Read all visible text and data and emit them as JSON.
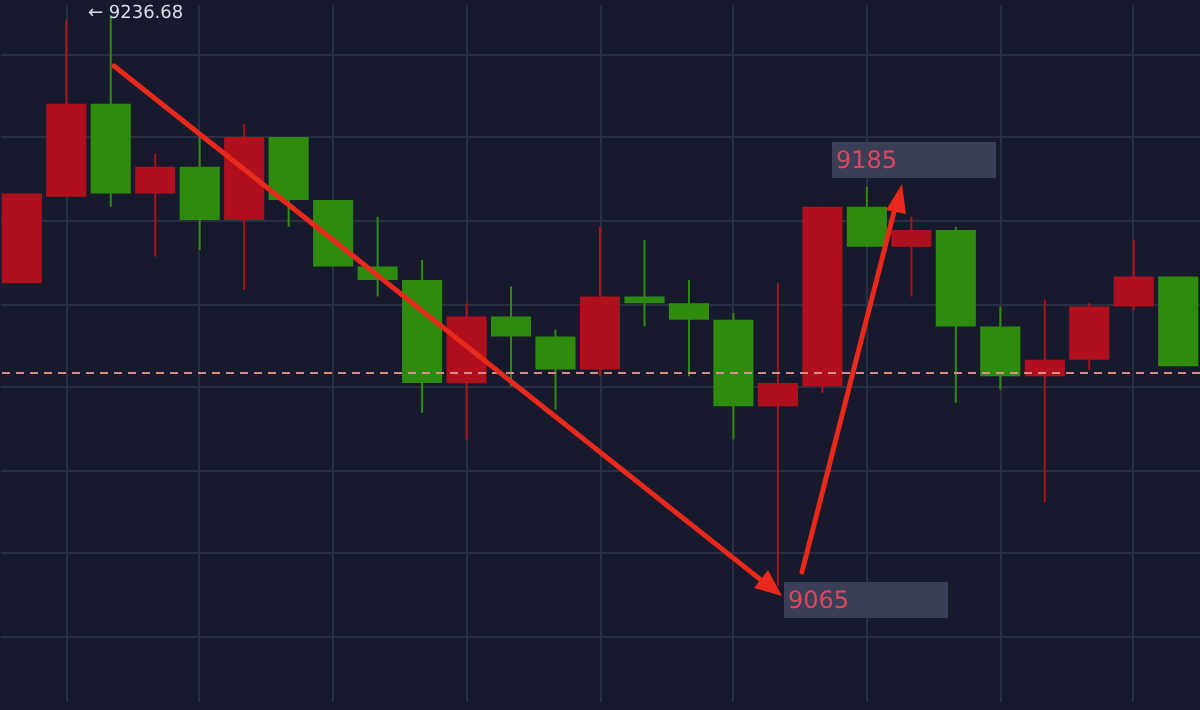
{
  "chart_data": {
    "type": "candlestick",
    "categories": [
      null,
      null,
      null,
      null,
      null,
      null,
      null,
      null,
      null,
      null,
      null,
      null,
      null,
      null,
      null,
      null,
      null,
      null,
      null,
      null,
      null,
      null,
      null,
      null,
      null,
      null,
      null
    ],
    "ohlc": [
      [
        9156,
        9183,
        9156,
        9183
      ],
      [
        9182,
        9235,
        9182,
        9210
      ],
      [
        9210,
        9236.68,
        9179,
        9183
      ],
      [
        9183,
        9195,
        9164,
        9191
      ],
      [
        9191,
        9200,
        9166,
        9175
      ],
      [
        9175,
        9204,
        9154,
        9200
      ],
      [
        9200,
        9200,
        9173,
        9181
      ],
      [
        9181,
        9181,
        9161,
        9161
      ],
      [
        9161,
        9176,
        9152,
        9157
      ],
      [
        9157,
        9163,
        9117,
        9126
      ],
      [
        9126,
        9150,
        9109,
        9146
      ],
      [
        9146,
        9155,
        9125,
        9140
      ],
      [
        9140,
        9142,
        9118,
        9130
      ],
      [
        9130,
        9173,
        9128,
        9152
      ],
      [
        9152,
        9169,
        9143,
        9150
      ],
      [
        9150,
        9157,
        9128,
        9145
      ],
      [
        9145,
        9147,
        9109,
        9119
      ],
      [
        9119,
        9156,
        9065,
        9126
      ],
      [
        9125,
        9179,
        9123,
        9179
      ],
      [
        9179,
        9185,
        9167,
        9167
      ],
      [
        9167,
        9176,
        9152,
        9172
      ],
      [
        9172,
        9173,
        9120,
        9143
      ],
      [
        9143,
        9149,
        9124,
        9128
      ],
      [
        9128,
        9151,
        9090,
        9133
      ],
      [
        9133,
        9150,
        9130,
        9149
      ],
      [
        9149,
        9169,
        9148,
        9158
      ],
      [
        9158,
        9158,
        9131,
        9131
      ]
    ],
    "colors": [
      "#b0101e",
      "#b0101e",
      "#2e8b0e",
      "#b0101e",
      "#2e8b0e",
      "#b0101e",
      "#2e8b0e",
      "#2e8b0e",
      "#2e8b0e",
      "#2e8b0e",
      "#b0101e",
      "#2e8b0e",
      "#2e8b0e",
      "#b0101e",
      "#2e8b0e",
      "#2e8b0e",
      "#2e8b0e",
      "#b0101e",
      "#b0101e",
      "#2e8b0e",
      "#b0101e",
      "#2e8b0e",
      "#2e8b0e",
      "#b0101e",
      "#b0101e",
      "#b0101e",
      "#2e8b0e"
    ],
    "ylim": [
      9030,
      9240
    ],
    "yticks": [
      {
        "value": 9050,
        "label": null
      },
      {
        "value": 9075,
        "label": null
      },
      {
        "value": 9100,
        "label": null
      },
      {
        "value": 9125,
        "label": null
      },
      {
        "value": 9150,
        "label": null
      },
      {
        "value": 9175,
        "label": null
      },
      {
        "value": 9200,
        "label": null
      },
      {
        "value": 9225,
        "label": null
      }
    ],
    "grid": true,
    "ref_lines": [
      {
        "axis": "y",
        "value": 9129,
        "color": "#d98a8a",
        "line_style": "dashed"
      }
    ],
    "annotations": [
      "← 9236.68",
      "9185",
      "9065"
    ]
  }
}
